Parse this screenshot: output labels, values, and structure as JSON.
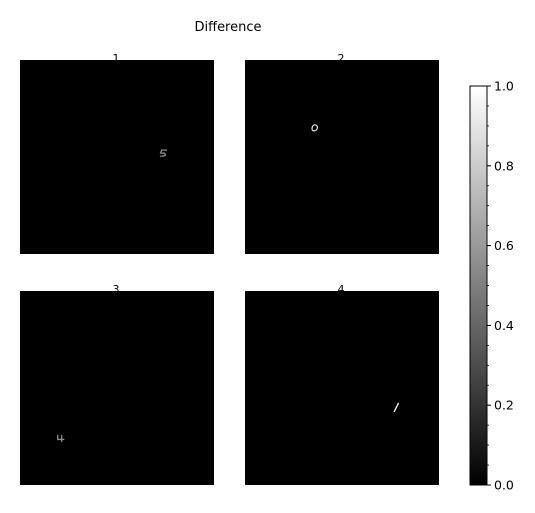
{
  "chart_data": {
    "type": "heatmap",
    "title": "Difference",
    "layout": "2x2 grid",
    "colormap": "gray",
    "panel_background": "#000000",
    "panels": [
      {
        "label": "1",
        "digit": "5",
        "digit_intensity": 0.55
      },
      {
        "label": "2",
        "digit": "0",
        "digit_intensity": 0.85
      },
      {
        "label": "3",
        "digit": "4",
        "digit_intensity": 0.55
      },
      {
        "label": "4",
        "digit": "1",
        "digit_intensity": 1.0
      }
    ],
    "colorbar": {
      "range": [
        0.0,
        1.0
      ],
      "tick_labels": [
        "0.0",
        "0.2",
        "0.4",
        "0.6",
        "0.8",
        "1.0"
      ],
      "tick_values": [
        0.0,
        0.2,
        0.4,
        0.6,
        0.8,
        1.0
      ],
      "minor_step": 0.05
    }
  }
}
